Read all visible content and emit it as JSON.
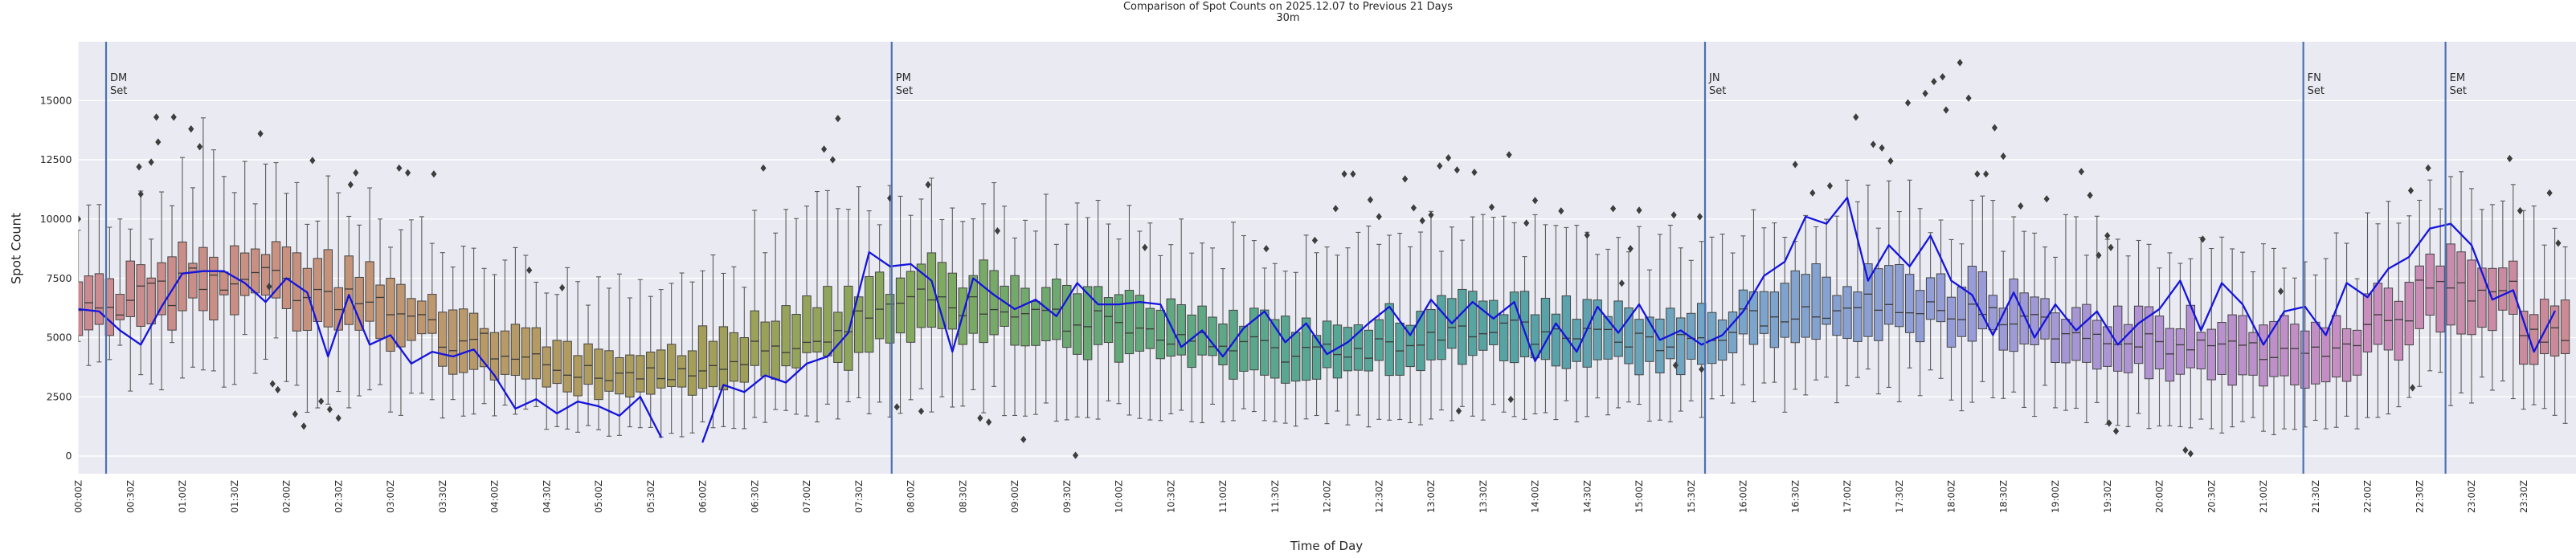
{
  "chart_data": {
    "type": "boxplot+line",
    "title": "Comparison of Spot Counts on 2025.12.07 to Previous 21 Days",
    "subtitle": "30m",
    "xlabel": "Time of Day",
    "ylabel": "Spot Count",
    "ylim": [
      -700,
      17500
    ],
    "yticks": [
      0,
      2500,
      5000,
      7500,
      10000,
      12500,
      15000
    ],
    "xticks": [
      "00:00Z",
      "00:30Z",
      "01:00Z",
      "01:30Z",
      "02:00Z",
      "02:30Z",
      "03:00Z",
      "03:30Z",
      "04:00Z",
      "04:30Z",
      "05:00Z",
      "05:30Z",
      "06:00Z",
      "06:30Z",
      "07:00Z",
      "07:30Z",
      "08:00Z",
      "08:30Z",
      "09:00Z",
      "09:30Z",
      "10:00Z",
      "10:30Z",
      "11:00Z",
      "11:30Z",
      "12:00Z",
      "12:30Z",
      "13:00Z",
      "13:30Z",
      "14:00Z",
      "14:30Z",
      "15:00Z",
      "15:30Z",
      "16:00Z",
      "16:30Z",
      "17:00Z",
      "17:30Z",
      "18:00Z",
      "18:30Z",
      "19:00Z",
      "19:30Z",
      "20:00Z",
      "20:30Z",
      "21:00Z",
      "21:30Z",
      "22:00Z",
      "22:30Z",
      "23:00Z",
      "23:30Z"
    ],
    "grid": "horizontal-white-on-lavender",
    "legend": "none",
    "bins_note": "previous-21-days distribution per time slot: [time, median, q1, q3, whisker_lo, whisker_hi]",
    "bins": [
      [
        "00:00",
        6100,
        5400,
        7300,
        4200,
        9700
      ],
      [
        "00:30",
        6900,
        5700,
        7900,
        3700,
        10100
      ],
      [
        "01:00",
        7400,
        6200,
        8300,
        3900,
        12800
      ],
      [
        "01:30",
        7500,
        6300,
        8400,
        4300,
        11200
      ],
      [
        "02:00",
        7100,
        5800,
        8100,
        2600,
        10800
      ],
      [
        "02:30",
        6700,
        5400,
        7800,
        2400,
        10600
      ],
      [
        "03:00",
        6000,
        4900,
        7100,
        2400,
        9800
      ],
      [
        "03:30",
        4800,
        3800,
        5800,
        2100,
        8800
      ],
      [
        "04:00",
        4300,
        3400,
        5300,
        1700,
        8300
      ],
      [
        "04:30",
        3600,
        2800,
        4700,
        1100,
        7100
      ],
      [
        "05:00",
        3400,
        2600,
        4500,
        1000,
        7000
      ],
      [
        "05:30",
        3500,
        2700,
        4600,
        1000,
        7200
      ],
      [
        "06:00",
        3800,
        2900,
        5000,
        1200,
        7800
      ],
      [
        "06:30",
        4600,
        3500,
        5900,
        1600,
        9300
      ],
      [
        "07:00",
        5200,
        4000,
        6600,
        1800,
        10300
      ],
      [
        "07:30",
        6100,
        4800,
        7400,
        2200,
        10900
      ],
      [
        "08:00",
        6600,
        5300,
        7800,
        2400,
        11000
      ],
      [
        "08:30",
        6400,
        5100,
        7600,
        2300,
        10700
      ],
      [
        "09:00",
        6000,
        4800,
        7200,
        2100,
        10100
      ],
      [
        "09:30",
        5700,
        4500,
        6900,
        1900,
        9800
      ],
      [
        "10:00",
        5300,
        4200,
        6500,
        1800,
        9500
      ],
      [
        "10:30",
        5000,
        3900,
        6200,
        1700,
        9200
      ],
      [
        "11:00",
        4700,
        3600,
        5800,
        1600,
        8900
      ],
      [
        "11:30",
        4300,
        3300,
        5600,
        1500,
        8600
      ],
      [
        "12:00",
        4400,
        3400,
        5700,
        1600,
        8700
      ],
      [
        "12:30",
        4700,
        3700,
        6000,
        1700,
        9000
      ],
      [
        "13:00",
        5300,
        4200,
        6500,
        1800,
        9400
      ],
      [
        "13:30",
        5400,
        4300,
        6600,
        1900,
        9500
      ],
      [
        "14:00",
        5100,
        4000,
        6300,
        2000,
        9200
      ],
      [
        "14:30",
        5000,
        3900,
        6200,
        2000,
        9100
      ],
      [
        "15:00",
        4800,
        3800,
        6000,
        1900,
        8900
      ],
      [
        "15:30",
        5100,
        4100,
        6300,
        2200,
        9100
      ],
      [
        "16:00",
        5800,
        4800,
        7000,
        2500,
        9700
      ],
      [
        "16:30",
        6200,
        5100,
        7400,
        2700,
        10200
      ],
      [
        "17:00",
        6400,
        5300,
        7600,
        2900,
        10400
      ],
      [
        "17:30",
        6400,
        5300,
        7700,
        3000,
        10500
      ],
      [
        "18:00",
        6100,
        4900,
        7300,
        2700,
        10100
      ],
      [
        "18:30",
        5700,
        4500,
        6900,
        2300,
        9700
      ],
      [
        "19:00",
        5100,
        3900,
        6300,
        1900,
        9100
      ],
      [
        "19:30",
        4800,
        3600,
        6000,
        1600,
        8800
      ],
      [
        "20:00",
        4600,
        3400,
        5800,
        1400,
        8600
      ],
      [
        "20:30",
        4500,
        3300,
        5700,
        1300,
        8500
      ],
      [
        "21:00",
        4300,
        3100,
        5500,
        1200,
        8300
      ],
      [
        "21:30",
        4400,
        3200,
        5700,
        1400,
        8500
      ],
      [
        "22:00",
        5600,
        4300,
        7000,
        2100,
        9800
      ],
      [
        "22:30",
        7000,
        5600,
        8300,
        2800,
        11600
      ],
      [
        "23:00",
        7000,
        5600,
        8300,
        2800,
        11700
      ],
      [
        "23:30",
        5200,
        4000,
        6600,
        1700,
        9900
      ]
    ],
    "line": {
      "name": "2025.12.07",
      "start": "00:00",
      "interval_min": 12,
      "gap_note": "null = no data (line break near 05:48)",
      "values": [
        6200,
        6100,
        5300,
        4700,
        6300,
        7700,
        7800,
        7800,
        7300,
        6500,
        7500,
        6900,
        4200,
        6800,
        4700,
        5100,
        3900,
        4400,
        4200,
        4500,
        3400,
        2000,
        2400,
        1800,
        2300,
        2100,
        1700,
        2500,
        800,
        null,
        600,
        3000,
        2700,
        3400,
        3100,
        3900,
        4200,
        5200,
        8600,
        8000,
        8100,
        7400,
        4400,
        7500,
        6800,
        6200,
        6600,
        5900,
        7300,
        6400,
        6400,
        6500,
        6400,
        4600,
        5300,
        4200,
        5400,
        6100,
        4800,
        5600,
        4300,
        4800,
        5600,
        6300,
        5100,
        6600,
        5600,
        6500,
        5800,
        6500,
        4000,
        5600,
        4400,
        6300,
        5200,
        6400,
        4900,
        5300,
        4700,
        5100,
        6100,
        7600,
        8200,
        10100,
        9800,
        10900,
        7400,
        8900,
        8000,
        9300,
        7400,
        6800,
        5100,
        6900,
        5000,
        6400,
        5300,
        6100,
        4700,
        5600,
        6200,
        7400,
        5300,
        7300,
        6400,
        4700,
        6100,
        6300,
        5100,
        7300,
        6700,
        7900,
        8400,
        9600,
        9800,
        8900,
        6600,
        7000,
        4400,
        6100
      ]
    },
    "outliers": [
      [
        "00:00",
        10000
      ],
      [
        "00:35",
        12200
      ],
      [
        "00:36",
        11050
      ],
      [
        "00:42",
        12400
      ],
      [
        "00:45",
        14300
      ],
      [
        "00:46",
        13250
      ],
      [
        "00:55",
        14300
      ],
      [
        "01:05",
        13800
      ],
      [
        "01:10",
        13050
      ],
      [
        "01:45",
        13600
      ],
      [
        "01:50",
        7150
      ],
      [
        "01:52",
        3050
      ],
      [
        "01:55",
        2800
      ],
      [
        "02:05",
        1770
      ],
      [
        "02:10",
        1260
      ],
      [
        "02:15",
        12470
      ],
      [
        "02:20",
        2310
      ],
      [
        "02:25",
        1970
      ],
      [
        "02:30",
        1600
      ],
      [
        "02:37",
        11450
      ],
      [
        "02:40",
        11950
      ],
      [
        "03:05",
        12150
      ],
      [
        "03:10",
        11950
      ],
      [
        "03:25",
        11900
      ],
      [
        "04:20",
        7840
      ],
      [
        "04:39",
        7100
      ],
      [
        "06:35",
        12150
      ],
      [
        "07:10",
        12950
      ],
      [
        "07:15",
        12500
      ],
      [
        "07:18",
        14240
      ],
      [
        "07:48",
        10880
      ],
      [
        "07:52",
        2070
      ],
      [
        "08:06",
        1890
      ],
      [
        "08:10",
        11450
      ],
      [
        "08:40",
        1600
      ],
      [
        "08:45",
        1430
      ],
      [
        "08:50",
        9500
      ],
      [
        "09:05",
        700
      ],
      [
        "09:35",
        30
      ],
      [
        "10:15",
        8800
      ],
      [
        "11:25",
        8750
      ],
      [
        "11:53",
        9100
      ],
      [
        "12:05",
        10440
      ],
      [
        "12:10",
        11900
      ],
      [
        "12:15",
        11900
      ],
      [
        "12:25",
        10810
      ],
      [
        "12:30",
        10100
      ],
      [
        "12:45",
        11690
      ],
      [
        "12:50",
        10470
      ],
      [
        "12:55",
        9930
      ],
      [
        "13:00",
        10170
      ],
      [
        "13:05",
        12240
      ],
      [
        "13:10",
        12580
      ],
      [
        "13:15",
        12070
      ],
      [
        "13:16",
        1900
      ],
      [
        "13:25",
        11970
      ],
      [
        "13:35",
        10500
      ],
      [
        "13:45",
        12710
      ],
      [
        "13:46",
        2390
      ],
      [
        "13:55",
        9830
      ],
      [
        "14:00",
        10780
      ],
      [
        "14:15",
        10340
      ],
      [
        "14:30",
        9320
      ],
      [
        "14:45",
        10440
      ],
      [
        "14:50",
        7290
      ],
      [
        "14:55",
        8750
      ],
      [
        "15:00",
        10370
      ],
      [
        "15:20",
        10170
      ],
      [
        "15:21",
        3830
      ],
      [
        "15:35",
        10100
      ],
      [
        "15:36",
        3660
      ],
      [
        "16:30",
        12300
      ],
      [
        "16:40",
        11100
      ],
      [
        "16:50",
        11400
      ],
      [
        "17:05",
        14300
      ],
      [
        "17:15",
        13150
      ],
      [
        "17:20",
        13000
      ],
      [
        "17:25",
        12450
      ],
      [
        "17:35",
        14900
      ],
      [
        "17:45",
        15300
      ],
      [
        "17:50",
        15800
      ],
      [
        "17:55",
        16000
      ],
      [
        "17:57",
        14600
      ],
      [
        "18:05",
        16600
      ],
      [
        "18:10",
        15100
      ],
      [
        "18:15",
        11900
      ],
      [
        "18:20",
        11900
      ],
      [
        "18:25",
        13850
      ],
      [
        "18:30",
        12650
      ],
      [
        "18:40",
        10550
      ],
      [
        "18:55",
        10850
      ],
      [
        "19:15",
        12000
      ],
      [
        "19:20",
        11000
      ],
      [
        "19:25",
        8470
      ],
      [
        "19:30",
        9300
      ],
      [
        "19:31",
        1390
      ],
      [
        "19:32",
        8800
      ],
      [
        "19:35",
        1050
      ],
      [
        "20:15",
        250
      ],
      [
        "20:18",
        100
      ],
      [
        "20:25",
        9150
      ],
      [
        "21:10",
        6950
      ],
      [
        "22:25",
        11200
      ],
      [
        "22:26",
        2880
      ],
      [
        "22:35",
        12150
      ],
      [
        "23:22",
        12550
      ],
      [
        "23:28",
        10350
      ],
      [
        "23:45",
        11100
      ],
      [
        "23:50",
        8980
      ]
    ],
    "sunset_markers": [
      {
        "grid": "DM",
        "label": "Set",
        "time": "00:16"
      },
      {
        "grid": "PM",
        "label": "Set",
        "time": "07:49"
      },
      {
        "grid": "JN",
        "label": "Set",
        "time": "15:38"
      },
      {
        "grid": "FN",
        "label": "Set",
        "time": "21:23"
      },
      {
        "grid": "EM",
        "label": "Set",
        "time": "22:45"
      }
    ],
    "style": {
      "axes_bg": "#eaeaf2",
      "grid_color": "#ffffff",
      "line_color": "#1414dd",
      "sunset_line_color": "#4c72b0",
      "outlier_color": "#3d3d3d",
      "box_edge": "#454545",
      "whisker_color": "#5a5a5a",
      "median_color": "#3a3a3a",
      "text_color": "#262626",
      "box_palette_2h_stops": [
        "#cb8a92",
        "#c89180",
        "#b89a66",
        "#a49e58",
        "#84aa5e",
        "#63a877",
        "#57a796",
        "#57a2a6",
        "#7aa5cb",
        "#959dd8",
        "#b292d2",
        "#c98dc0",
        "#cb8a92"
      ]
    }
  }
}
